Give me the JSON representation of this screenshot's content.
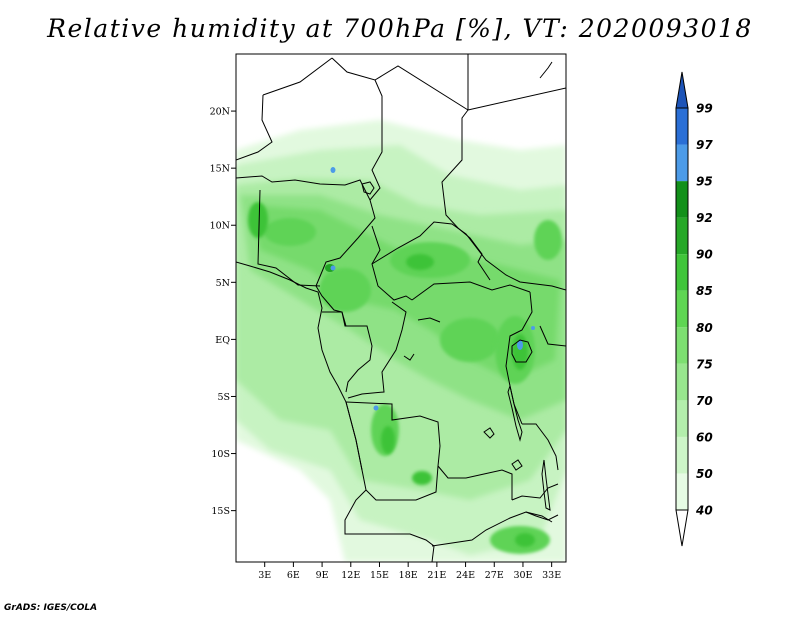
{
  "title": "Relative humidity at 700hPa [%], VT: 2020093018",
  "credit": "GrADS: IGES/COLA",
  "map": {
    "lon_range": [
      0,
      34.5
    ],
    "lat_range": [
      -19.5,
      25
    ],
    "lat_ticks": [
      {
        "value": 20,
        "label": "20N"
      },
      {
        "value": 15,
        "label": "15N"
      },
      {
        "value": 10,
        "label": "10N"
      },
      {
        "value": 5,
        "label": "5N"
      },
      {
        "value": 0,
        "label": "EQ"
      },
      {
        "value": -5,
        "label": "5S"
      },
      {
        "value": -10,
        "label": "10S"
      },
      {
        "value": -15,
        "label": "15S"
      }
    ],
    "lon_ticks": [
      {
        "value": 3,
        "label": "3E"
      },
      {
        "value": 6,
        "label": "6E"
      },
      {
        "value": 9,
        "label": "9E"
      },
      {
        "value": 12,
        "label": "12E"
      },
      {
        "value": 15,
        "label": "15E"
      },
      {
        "value": 18,
        "label": "18E"
      },
      {
        "value": 21,
        "label": "21E"
      },
      {
        "value": 24,
        "label": "24E"
      },
      {
        "value": 27,
        "label": "27E"
      },
      {
        "value": 30,
        "label": "30E"
      },
      {
        "value": 33,
        "label": "33E"
      }
    ]
  },
  "colorbar": {
    "levels": [
      {
        "label": "40",
        "color": "#e6fbe4"
      },
      {
        "label": "50",
        "color": "#cdf5c8"
      },
      {
        "label": "60",
        "color": "#b3eeac"
      },
      {
        "label": "70",
        "color": "#98e68e"
      },
      {
        "label": "75",
        "color": "#7ddf71"
      },
      {
        "label": "80",
        "color": "#5fd653"
      },
      {
        "label": "85",
        "color": "#40c53a"
      },
      {
        "label": "90",
        "color": "#26a828"
      },
      {
        "label": "92",
        "color": "#12901a"
      },
      {
        "label": "95",
        "color": "#4c9be8"
      },
      {
        "label": "97",
        "color": "#2a6fd6"
      },
      {
        "label": "99",
        "color": "#1d54b8"
      }
    ],
    "below_color": "#ffffff",
    "above_color": "#1d54b8"
  }
}
